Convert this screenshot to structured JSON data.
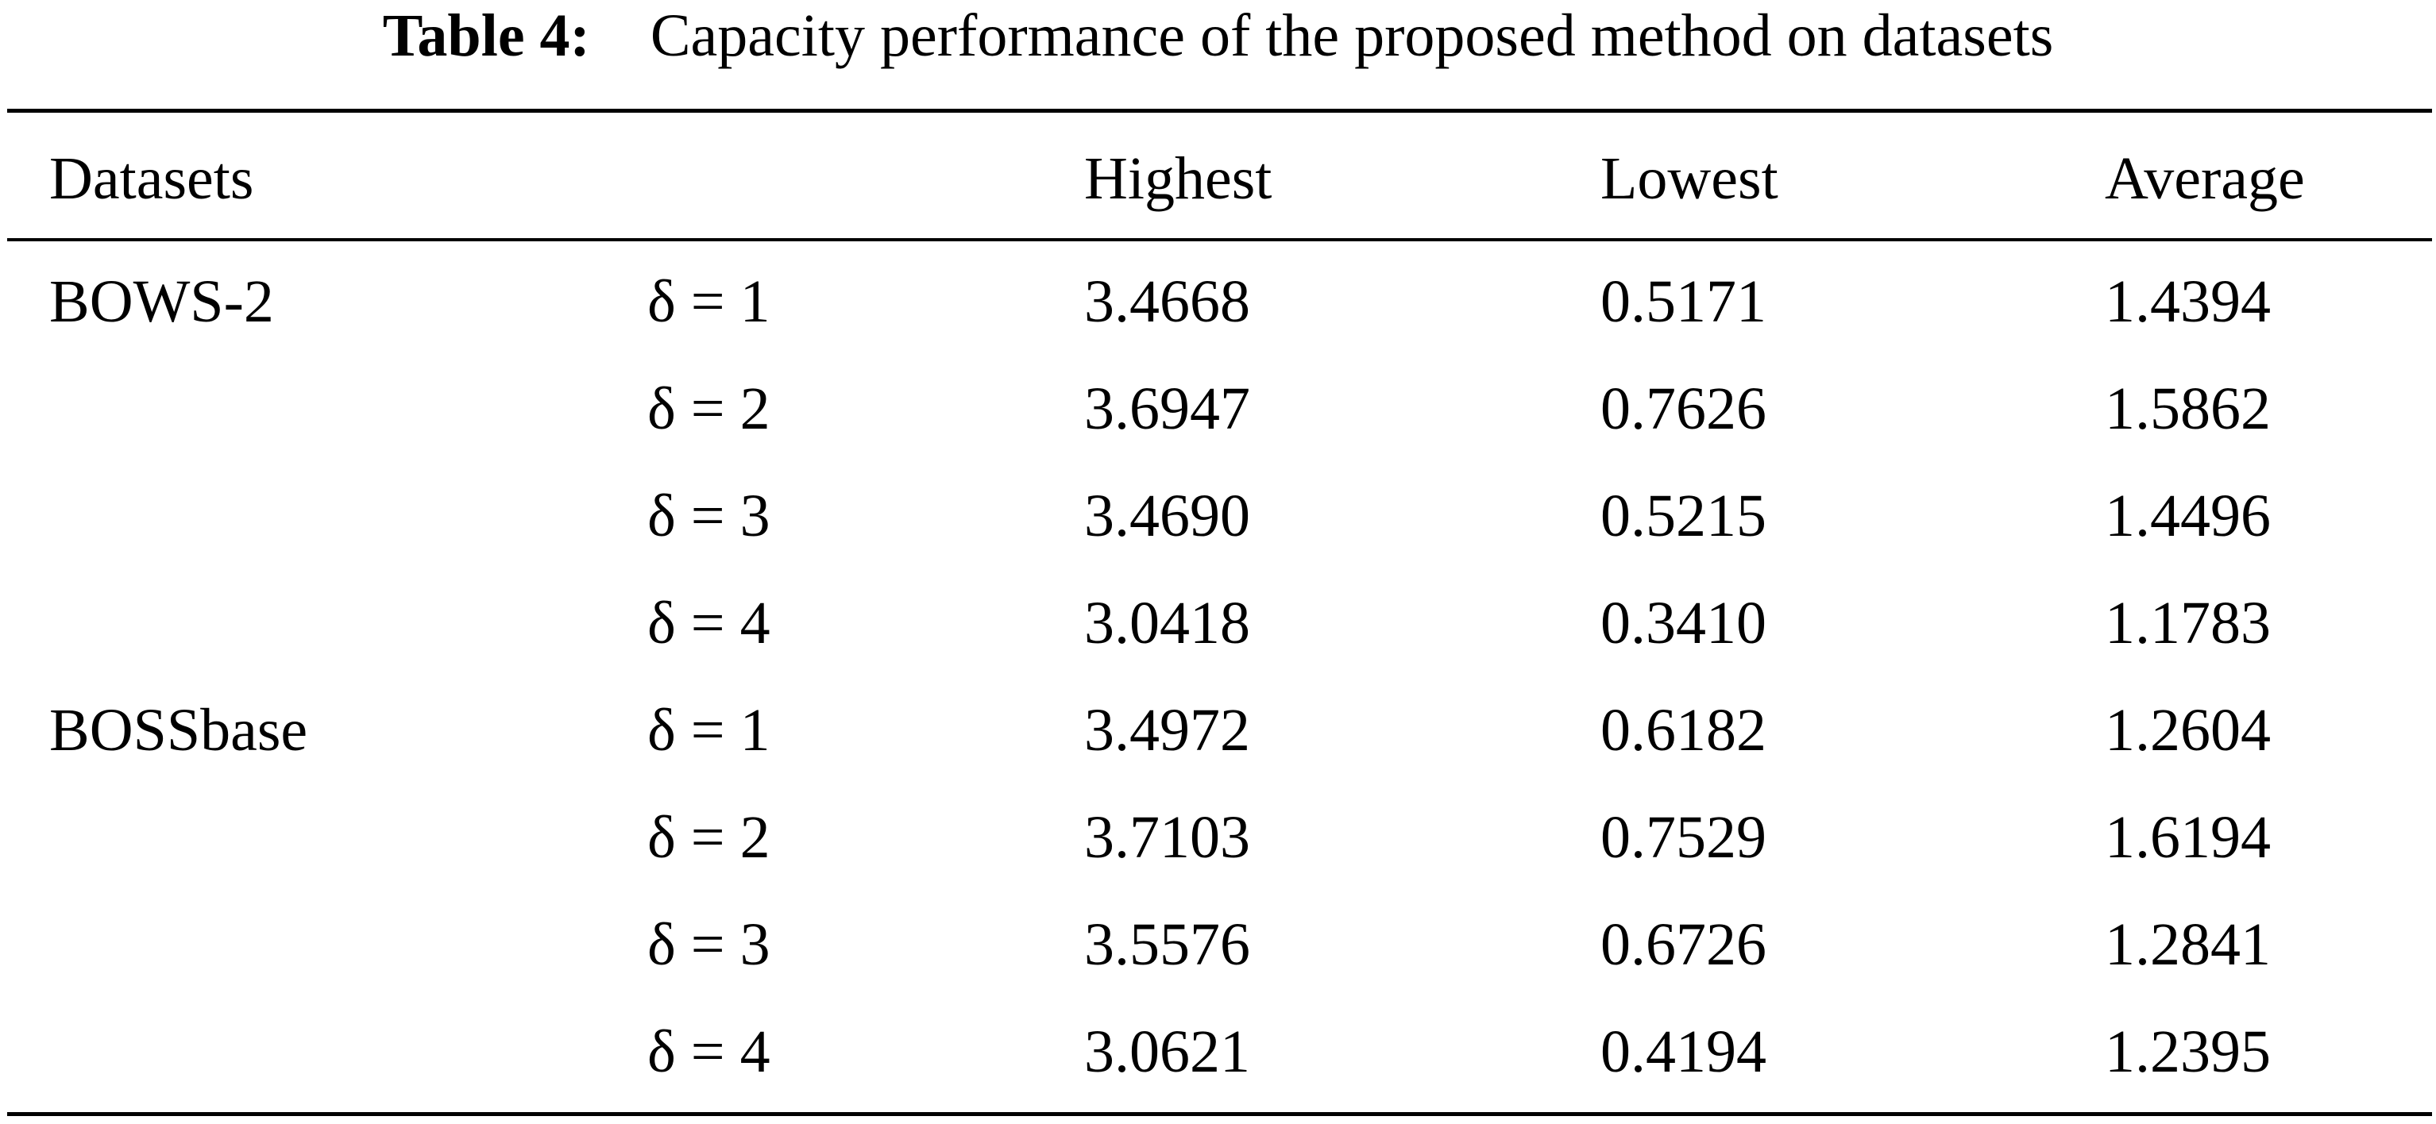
{
  "caption": {
    "label": "Table 4:",
    "text": "Capacity performance of the proposed method on datasets"
  },
  "columns": [
    "Datasets",
    "",
    "Highest",
    "Lowest",
    "Average"
  ],
  "rows": [
    {
      "dataset": "BOWS-2",
      "delta": "δ = 1",
      "highest": "3.4668",
      "lowest": "0.5171",
      "average": "1.4394"
    },
    {
      "dataset": "",
      "delta": "δ = 2",
      "highest": "3.6947",
      "lowest": "0.7626",
      "average": "1.5862"
    },
    {
      "dataset": "",
      "delta": "δ = 3",
      "highest": "3.4690",
      "lowest": "0.5215",
      "average": "1.4496"
    },
    {
      "dataset": "",
      "delta": "δ = 4",
      "highest": "3.0418",
      "lowest": "0.3410",
      "average": "1.1783"
    },
    {
      "dataset": "BOSSbase",
      "delta": "δ = 1",
      "highest": "3.4972",
      "lowest": "0.6182",
      "average": "1.2604"
    },
    {
      "dataset": "",
      "delta": "δ = 2",
      "highest": "3.7103",
      "lowest": "0.7529",
      "average": "1.6194"
    },
    {
      "dataset": "",
      "delta": "δ = 3",
      "highest": "3.5576",
      "lowest": "0.6726",
      "average": "1.2841"
    },
    {
      "dataset": "",
      "delta": "δ = 4",
      "highest": "3.0621",
      "lowest": "0.4194",
      "average": "1.2395"
    }
  ]
}
